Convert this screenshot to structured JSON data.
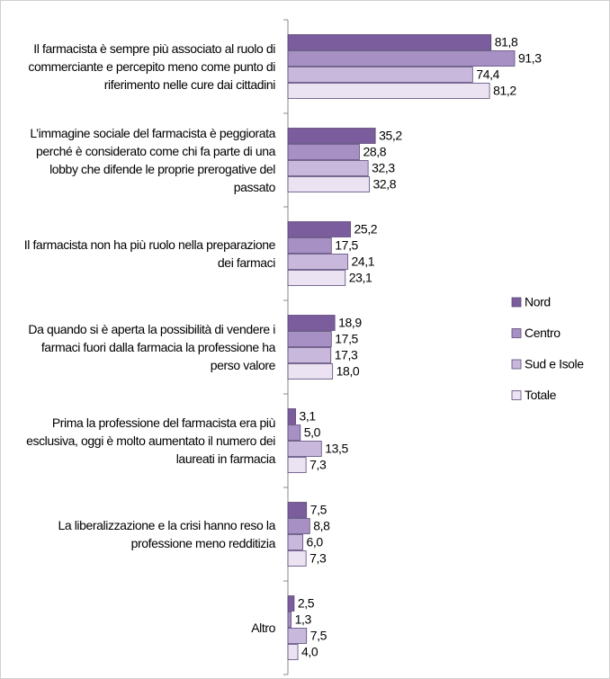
{
  "chart_data": {
    "type": "bar",
    "orientation": "horizontal",
    "categories": [
      "Il farmacista è sempre più associato al ruolo di commerciante e percepito meno come punto di riferimento nelle cure dai cittadini",
      "L’immagine sociale del farmacista è peggiorata perché è considerato come chi fa parte di una lobby che difende le proprie prerogative del passato",
      "Il farmacista non ha più ruolo nella preparazione dei farmaci",
      "Da quando si è aperta la possibilità di vendere i farmaci fuori dalla farmacia la professione ha perso valore",
      "Prima la professione del farmacista era più esclusiva, oggi è molto aumentato il numero dei laureati in farmacia",
      "La liberalizzazione e la crisi hanno reso la professione meno redditizia",
      "Altro"
    ],
    "series": [
      {
        "name": "Nord",
        "color": "#7b5c9c",
        "values": [
          81.8,
          35.2,
          25.2,
          18.9,
          3.1,
          7.5,
          2.5
        ],
        "value_labels": [
          "81,8",
          "35,2",
          "25,2",
          "18,9",
          "3,1",
          "7,5",
          "2,5"
        ]
      },
      {
        "name": "Centro",
        "color": "#a690c4",
        "values": [
          91.3,
          28.8,
          17.5,
          17.5,
          5.0,
          8.8,
          1.3
        ],
        "value_labels": [
          "91,3",
          "28,8",
          "17,5",
          "17,5",
          "5,0",
          "8,8",
          "1,3"
        ]
      },
      {
        "name": "Sud e Isole",
        "color": "#c8b8dc",
        "values": [
          74.4,
          32.3,
          24.1,
          17.3,
          13.5,
          6.0,
          7.5
        ],
        "value_labels": [
          "74,4",
          "32,3",
          "24,1",
          "17,3",
          "13,5",
          "6,0",
          "7,5"
        ]
      },
      {
        "name": "Totale",
        "color": "#ebe2f2",
        "values": [
          81.2,
          32.8,
          23.1,
          18.0,
          7.3,
          7.3,
          4.0
        ],
        "value_labels": [
          "81,2",
          "32,8",
          "23,1",
          "18,0",
          "7,3",
          "7,3",
          "4,0"
        ]
      }
    ],
    "xlim": [
      0,
      100
    ],
    "legend": "right"
  }
}
